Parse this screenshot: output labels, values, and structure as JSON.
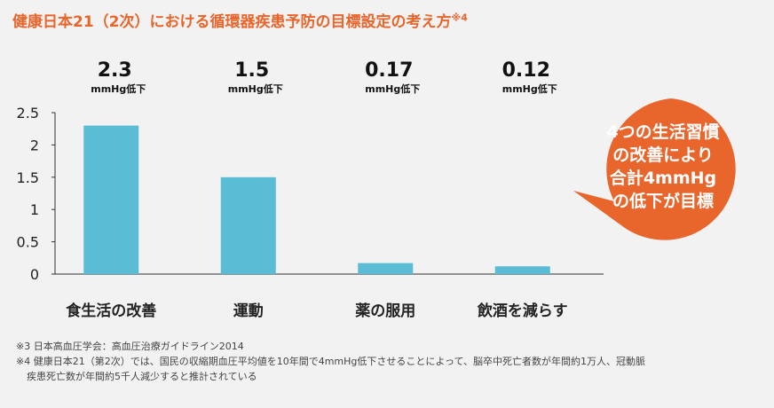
{
  "title": "健康日本21（2次）における循環器疾患予防の目標設定の考え方",
  "title_note": "※4",
  "accent_color": "#e8652c",
  "bar_color": "#5bbcd6",
  "chart_data": {
    "type": "bar",
    "categories": [
      "食生活の改善",
      "運動",
      "薬の服用",
      "飲酒を減らす"
    ],
    "values": [
      2.3,
      1.5,
      0.17,
      0.12
    ],
    "value_labels": [
      "2.3",
      "1.5",
      "0.17",
      "0.12"
    ],
    "unit_label": "mmHg低下",
    "ylim": [
      0,
      2.5
    ],
    "yticks": [
      "0",
      "0.5",
      "1",
      "1.5",
      "2",
      "2.5"
    ],
    "grid": false
  },
  "callout": {
    "lines": [
      "4つの生活習慣",
      "の改善により",
      "合計4mmHg",
      "の低下が目標"
    ]
  },
  "footnotes": [
    "※3 日本高血圧学会：高血圧治療ガイドライン2014",
    "※4 健康日本21（第2次）では、国民の収縮期血圧平均値を10年間で4mmHg低下させることによって、脳卒中死亡者数が年間約1万人、冠動脈",
    "疾患死亡数が年間約5千人減少すると推計されている"
  ]
}
